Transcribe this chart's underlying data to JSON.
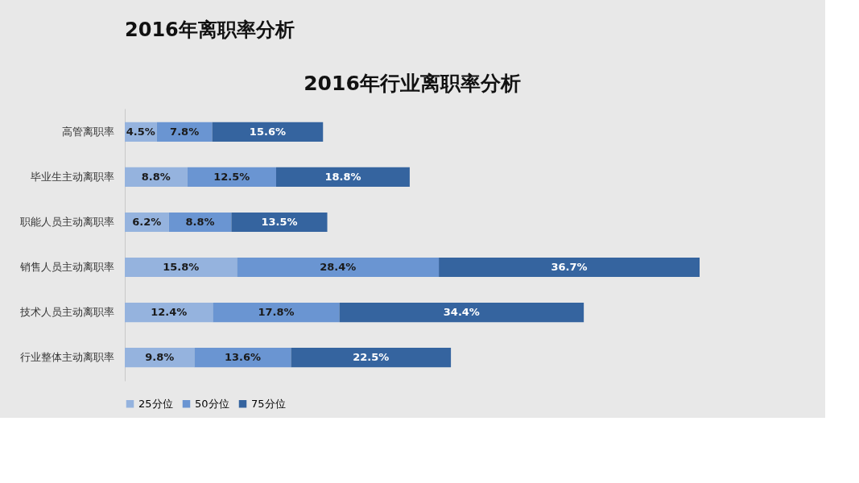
{
  "chart_data": {
    "type": "bar",
    "orientation": "horizontal",
    "stacked": true,
    "title": "2016年行业离职率分析",
    "annotations": [
      "2016年离职率分析"
    ],
    "categories": [
      "高管离职率",
      "毕业生主动离职率",
      "职能人员主动离职率",
      "销售人员主动离职率",
      "技术人员主动离职率",
      "行业整体主动离职率"
    ],
    "series": [
      {
        "name": "25分位",
        "color": "#95b3de",
        "values": [
          4.5,
          8.8,
          6.2,
          15.8,
          12.4,
          9.8
        ],
        "value_labels": [
          "4.5%",
          "8.8%",
          "6.2%",
          "15.8%",
          "12.4%",
          "9.8%"
        ]
      },
      {
        "name": "50分位",
        "color": "#6a95d2",
        "values": [
          7.8,
          12.5,
          8.8,
          28.4,
          17.8,
          13.6
        ],
        "value_labels": [
          "7.8%",
          "12.5%",
          "8.8%",
          "28.4%",
          "17.8%",
          "13.6%"
        ]
      },
      {
        "name": "75分位",
        "color": "#35649f",
        "values": [
          15.6,
          18.8,
          13.5,
          36.7,
          34.4,
          22.5
        ],
        "value_labels": [
          "15.6%",
          "18.8%",
          "13.5%",
          "36.7%",
          "34.4%",
          "22.5%"
        ]
      }
    ],
    "legend": "bottom",
    "grid": false
  }
}
